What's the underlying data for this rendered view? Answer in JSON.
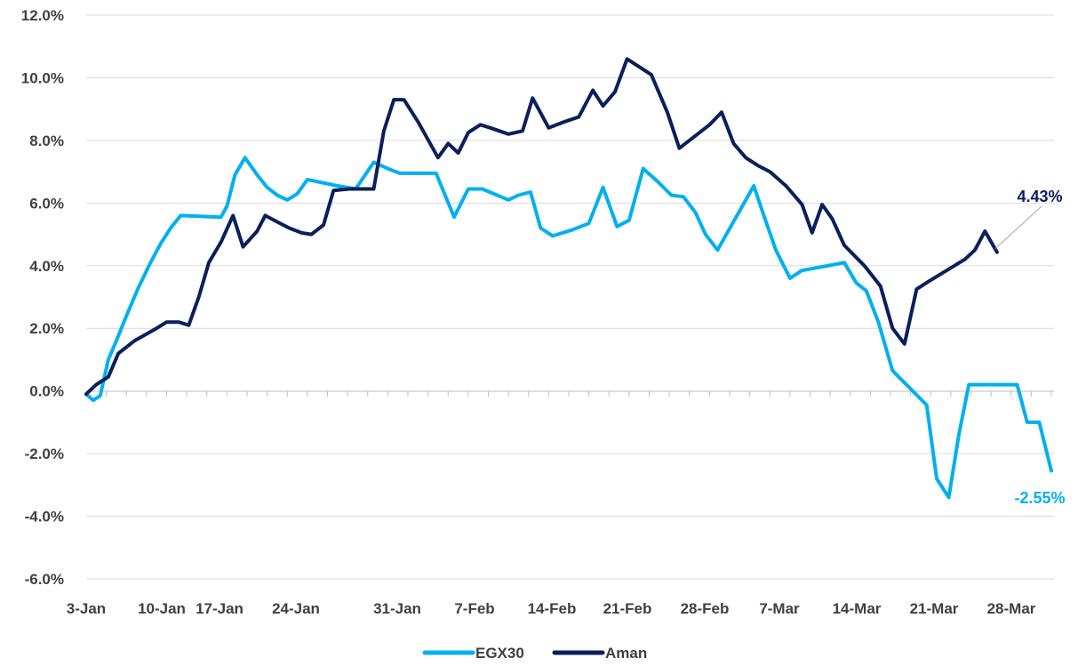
{
  "chart_data": {
    "type": "line",
    "title": "",
    "xlabel": "",
    "ylabel": "",
    "ylim": [
      -6.0,
      12.0
    ],
    "y_ticks": [
      "-6.0%",
      "-4.0%",
      "-2.0%",
      "0.0%",
      "2.0%",
      "4.0%",
      "6.0%",
      "8.0%",
      "10.0%",
      "12.0%"
    ],
    "y_tick_values": [
      -6,
      -4,
      -2,
      0,
      2,
      4,
      6,
      8,
      10,
      12
    ],
    "grid": true,
    "legend_position": "bottom",
    "x_categories": [
      "3-Jan",
      "10-Jan",
      "17-Jan",
      "24-Jan",
      "31-Jan",
      "7-Feb",
      "14-Feb",
      "21-Feb",
      "28-Feb",
      "7-Mar",
      "14-Mar",
      "21-Mar",
      "28-Mar"
    ],
    "series": [
      {
        "name": "EGX30",
        "color": "#00B0F0",
        "end_label": "-2.55%",
        "points": [
          [
            0.0,
            -0.1
          ],
          [
            0.35,
            -0.3
          ],
          [
            0.7,
            -0.15
          ],
          [
            1.1,
            1.0
          ],
          [
            1.5,
            1.6
          ],
          [
            2.0,
            2.4
          ],
          [
            2.6,
            3.3
          ],
          [
            3.2,
            4.1
          ],
          [
            3.7,
            4.7
          ],
          [
            4.2,
            5.2
          ],
          [
            4.7,
            5.6
          ],
          [
            6.7,
            5.55
          ],
          [
            7.0,
            5.9
          ],
          [
            7.4,
            6.9
          ],
          [
            7.9,
            7.45
          ],
          [
            8.5,
            6.9
          ],
          [
            9.0,
            6.5
          ],
          [
            9.5,
            6.25
          ],
          [
            10.0,
            6.1
          ],
          [
            10.5,
            6.3
          ],
          [
            11.0,
            6.75
          ],
          [
            12.5,
            6.55
          ],
          [
            13.4,
            6.45
          ],
          [
            14.3,
            7.3
          ],
          [
            15.0,
            7.1
          ],
          [
            15.6,
            6.95
          ],
          [
            17.4,
            6.95
          ],
          [
            18.3,
            5.55
          ],
          [
            19.0,
            6.45
          ],
          [
            19.7,
            6.45
          ],
          [
            21.0,
            6.1
          ],
          [
            21.5,
            6.25
          ],
          [
            22.1,
            6.35
          ],
          [
            22.6,
            5.2
          ],
          [
            23.2,
            4.95
          ],
          [
            24.2,
            5.15
          ],
          [
            25.0,
            5.35
          ],
          [
            25.7,
            6.5
          ],
          [
            26.4,
            5.25
          ],
          [
            27.0,
            5.45
          ],
          [
            27.7,
            7.1
          ],
          [
            28.4,
            6.7
          ],
          [
            29.1,
            6.25
          ],
          [
            29.7,
            6.2
          ],
          [
            30.3,
            5.7
          ],
          [
            30.8,
            5.0
          ],
          [
            31.4,
            4.5
          ],
          [
            32.1,
            5.3
          ],
          [
            33.2,
            6.55
          ],
          [
            33.7,
            5.6
          ],
          [
            34.3,
            4.5
          ],
          [
            35.0,
            3.6
          ],
          [
            35.6,
            3.85
          ],
          [
            36.5,
            3.95
          ],
          [
            37.7,
            4.1
          ],
          [
            38.3,
            3.45
          ],
          [
            38.8,
            3.2
          ],
          [
            39.4,
            2.2
          ],
          [
            40.1,
            0.65
          ],
          [
            41.8,
            -0.45
          ],
          [
            42.3,
            -2.8
          ],
          [
            42.9,
            -3.4
          ],
          [
            43.4,
            -1.4
          ],
          [
            43.9,
            0.2
          ],
          [
            45.3,
            0.2
          ],
          [
            46.3,
            0.2
          ],
          [
            46.8,
            -1.0
          ],
          [
            47.4,
            -1.0
          ],
          [
            48.0,
            -2.55
          ]
        ]
      },
      {
        "name": "Aman",
        "color": "#0A1F5C",
        "end_label": "4.43%",
        "points": [
          [
            0.0,
            -0.1
          ],
          [
            0.5,
            0.2
          ],
          [
            1.1,
            0.45
          ],
          [
            1.6,
            1.2
          ],
          [
            2.4,
            1.6
          ],
          [
            3.5,
            2.0
          ],
          [
            4.0,
            2.2
          ],
          [
            4.6,
            2.2
          ],
          [
            5.1,
            2.1
          ],
          [
            5.6,
            3.0
          ],
          [
            6.1,
            4.1
          ],
          [
            6.7,
            4.75
          ],
          [
            7.3,
            5.6
          ],
          [
            7.8,
            4.6
          ],
          [
            8.5,
            5.1
          ],
          [
            8.9,
            5.6
          ],
          [
            9.5,
            5.4
          ],
          [
            10.1,
            5.2
          ],
          [
            10.7,
            5.05
          ],
          [
            11.2,
            5.0
          ],
          [
            11.8,
            5.3
          ],
          [
            12.3,
            6.4
          ],
          [
            13.1,
            6.45
          ],
          [
            13.7,
            6.45
          ],
          [
            14.3,
            6.45
          ],
          [
            14.8,
            8.3
          ],
          [
            15.3,
            9.3
          ],
          [
            15.8,
            9.3
          ],
          [
            16.5,
            8.6
          ],
          [
            17.5,
            7.45
          ],
          [
            18.0,
            7.9
          ],
          [
            18.5,
            7.6
          ],
          [
            19.0,
            8.25
          ],
          [
            19.6,
            8.5
          ],
          [
            20.1,
            8.4
          ],
          [
            21.0,
            8.2
          ],
          [
            21.7,
            8.3
          ],
          [
            22.2,
            9.35
          ],
          [
            23.0,
            8.4
          ],
          [
            23.8,
            8.6
          ],
          [
            24.5,
            8.75
          ],
          [
            25.2,
            9.6
          ],
          [
            25.7,
            9.1
          ],
          [
            26.3,
            9.55
          ],
          [
            26.9,
            10.6
          ],
          [
            28.1,
            10.1
          ],
          [
            28.9,
            8.9
          ],
          [
            29.5,
            7.75
          ],
          [
            30.2,
            8.1
          ],
          [
            31.0,
            8.5
          ],
          [
            31.6,
            8.9
          ],
          [
            32.2,
            7.9
          ],
          [
            32.8,
            7.45
          ],
          [
            33.4,
            7.2
          ],
          [
            34.0,
            7.0
          ],
          [
            34.8,
            6.55
          ],
          [
            35.6,
            5.95
          ],
          [
            36.1,
            5.05
          ],
          [
            36.6,
            5.95
          ],
          [
            37.1,
            5.5
          ],
          [
            37.7,
            4.65
          ],
          [
            38.7,
            4.0
          ],
          [
            39.5,
            3.35
          ],
          [
            40.1,
            2.0
          ],
          [
            40.7,
            1.5
          ],
          [
            41.3,
            3.25
          ],
          [
            41.9,
            3.5
          ],
          [
            43.7,
            4.2
          ],
          [
            44.2,
            4.5
          ],
          [
            44.7,
            5.1
          ],
          [
            45.3,
            4.43
          ]
        ]
      }
    ]
  }
}
